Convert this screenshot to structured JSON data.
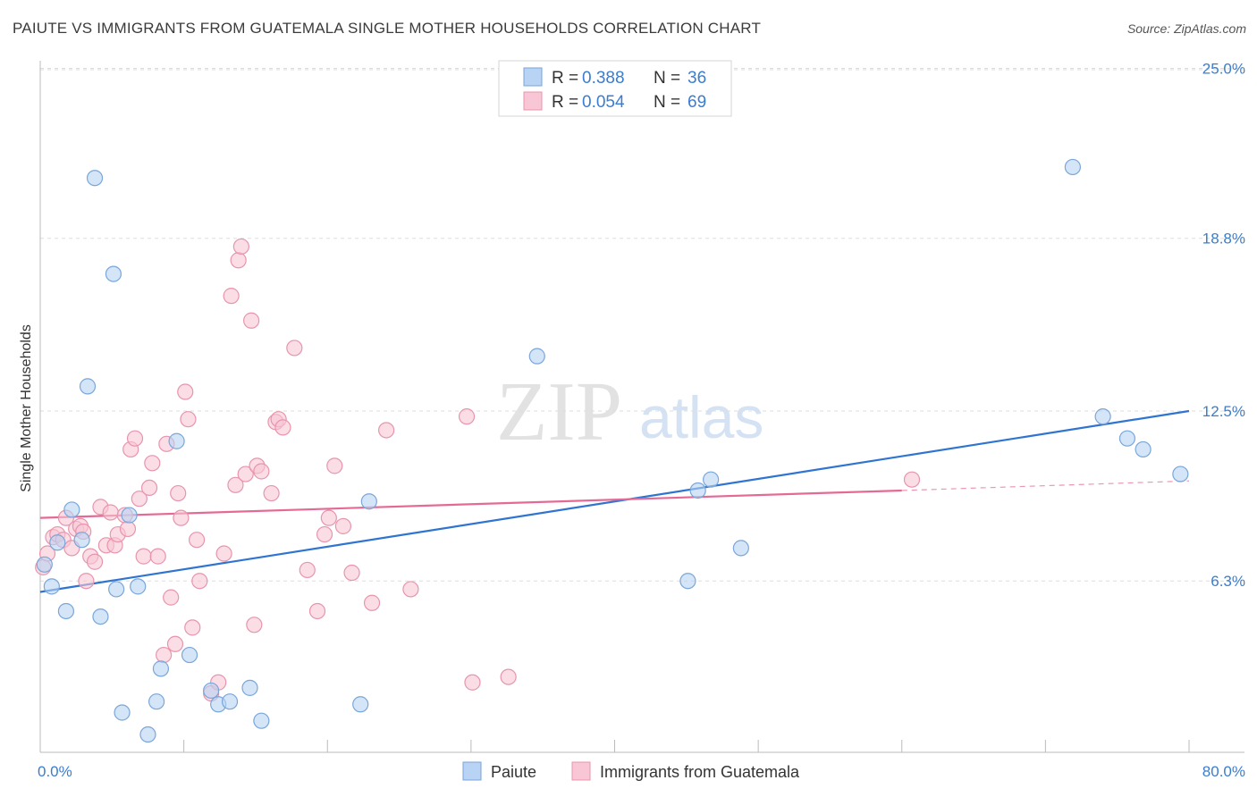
{
  "header": {
    "title": "PAIUTE VS IMMIGRANTS FROM GUATEMALA SINGLE MOTHER HOUSEHOLDS CORRELATION CHART",
    "source": "Source: ZipAtlas.com"
  },
  "watermark": {
    "zip": "ZIP",
    "atlas": "atlas"
  },
  "legend_top": {
    "rows": [
      {
        "r_label": "R =",
        "r_value": "0.388",
        "n_label": "N =",
        "n_value": "36"
      },
      {
        "r_label": "R =",
        "r_value": "0.054",
        "n_label": "N =",
        "n_value": "69"
      }
    ]
  },
  "legend_bottom": {
    "items": [
      "Paiute",
      "Immigrants from Guatemala"
    ]
  },
  "colors": {
    "paiute_fill": "#b8d3f3",
    "paiute_stroke": "#7aa6d9",
    "paiute_line": "#2f74d0",
    "guat_fill": "#f8c6d4",
    "guat_stroke": "#e795ad",
    "guat_line": "#e46a95",
    "tick_label": "#3a7dcf",
    "grid": "#dddddd"
  },
  "chart_data": {
    "type": "scatter",
    "title": "PAIUTE VS IMMIGRANTS FROM GUATEMALA SINGLE MOTHER HOUSEHOLDS CORRELATION CHART",
    "ylabel": "Single Mother Households",
    "xlabel": "",
    "xlim": [
      0,
      80
    ],
    "ylim": [
      0,
      25.9
    ],
    "x_ticks": [
      "0.0%",
      "80.0%"
    ],
    "y_ticks": [
      {
        "value": 6.3,
        "label": "6.3%"
      },
      {
        "value": 12.5,
        "label": "12.5%"
      },
      {
        "value": 18.8,
        "label": "18.8%"
      },
      {
        "value": 25.0,
        "label": "25.0%"
      }
    ],
    "grid": true,
    "legend_position": "top-center",
    "series": [
      {
        "name": "Paiute",
        "r": 0.388,
        "n": 36,
        "trend": {
          "x0": 0,
          "y0": 5.9,
          "x1": 80,
          "y1": 12.5
        },
        "points": [
          [
            0.3,
            6.9
          ],
          [
            0.8,
            6.1
          ],
          [
            1.2,
            7.7
          ],
          [
            1.8,
            5.2
          ],
          [
            2.2,
            8.9
          ],
          [
            2.9,
            7.8
          ],
          [
            3.3,
            13.4
          ],
          [
            3.8,
            21.0
          ],
          [
            4.2,
            5.0
          ],
          [
            5.1,
            17.5
          ],
          [
            5.3,
            6.0
          ],
          [
            5.7,
            1.5
          ],
          [
            6.2,
            8.7
          ],
          [
            6.8,
            6.1
          ],
          [
            7.5,
            0.7
          ],
          [
            8.1,
            1.9
          ],
          [
            8.4,
            3.1
          ],
          [
            9.5,
            11.4
          ],
          [
            10.4,
            3.6
          ],
          [
            11.9,
            2.3
          ],
          [
            12.4,
            1.8
          ],
          [
            13.2,
            1.9
          ],
          [
            14.6,
            2.4
          ],
          [
            15.4,
            1.2
          ],
          [
            22.3,
            1.8
          ],
          [
            22.9,
            9.2
          ],
          [
            34.6,
            14.5
          ],
          [
            45.1,
            6.3
          ],
          [
            45.8,
            9.6
          ],
          [
            46.7,
            10.0
          ],
          [
            48.8,
            7.5
          ],
          [
            71.9,
            21.4
          ],
          [
            74.0,
            12.3
          ],
          [
            75.7,
            11.5
          ],
          [
            76.8,
            11.1
          ],
          [
            79.4,
            10.2
          ]
        ]
      },
      {
        "name": "Immigrants from Guatemala",
        "r": 0.054,
        "n": 69,
        "trend": {
          "x0": 0,
          "y0": 8.6,
          "x1": 60,
          "y1": 9.6
        },
        "trend_dashed": {
          "x0": 60,
          "y0": 9.6,
          "x1": 80,
          "y1": 9.95
        },
        "points": [
          [
            0.2,
            6.8
          ],
          [
            0.5,
            7.3
          ],
          [
            0.9,
            7.9
          ],
          [
            1.2,
            8.0
          ],
          [
            1.6,
            7.8
          ],
          [
            1.8,
            8.6
          ],
          [
            2.2,
            7.5
          ],
          [
            2.5,
            8.2
          ],
          [
            2.8,
            8.3
          ],
          [
            3.0,
            8.1
          ],
          [
            3.2,
            6.3
          ],
          [
            3.5,
            7.2
          ],
          [
            3.8,
            7.0
          ],
          [
            4.2,
            9.0
          ],
          [
            4.6,
            7.6
          ],
          [
            4.9,
            8.8
          ],
          [
            5.2,
            7.6
          ],
          [
            5.4,
            8.0
          ],
          [
            5.9,
            8.7
          ],
          [
            6.1,
            8.2
          ],
          [
            6.3,
            11.1
          ],
          [
            6.6,
            11.5
          ],
          [
            6.9,
            9.3
          ],
          [
            7.2,
            7.2
          ],
          [
            7.6,
            9.7
          ],
          [
            7.8,
            10.6
          ],
          [
            8.2,
            7.2
          ],
          [
            8.6,
            3.6
          ],
          [
            8.8,
            11.3
          ],
          [
            9.1,
            5.7
          ],
          [
            9.4,
            4.0
          ],
          [
            9.6,
            9.5
          ],
          [
            9.8,
            8.6
          ],
          [
            10.1,
            13.2
          ],
          [
            10.3,
            12.2
          ],
          [
            10.6,
            4.6
          ],
          [
            10.9,
            7.8
          ],
          [
            11.1,
            6.3
          ],
          [
            11.9,
            2.2
          ],
          [
            12.4,
            2.6
          ],
          [
            12.8,
            7.3
          ],
          [
            13.3,
            16.7
          ],
          [
            13.6,
            9.8
          ],
          [
            13.8,
            18.0
          ],
          [
            14.0,
            18.5
          ],
          [
            14.3,
            10.2
          ],
          [
            14.7,
            15.8
          ],
          [
            14.9,
            4.7
          ],
          [
            15.1,
            10.5
          ],
          [
            15.4,
            10.3
          ],
          [
            16.1,
            9.5
          ],
          [
            16.4,
            12.1
          ],
          [
            16.6,
            12.2
          ],
          [
            16.9,
            11.9
          ],
          [
            17.7,
            14.8
          ],
          [
            18.6,
            6.7
          ],
          [
            19.3,
            5.2
          ],
          [
            19.8,
            8.0
          ],
          [
            20.1,
            8.6
          ],
          [
            20.5,
            10.5
          ],
          [
            21.1,
            8.3
          ],
          [
            21.7,
            6.6
          ],
          [
            23.1,
            5.5
          ],
          [
            24.1,
            11.8
          ],
          [
            25.8,
            6.0
          ],
          [
            29.7,
            12.3
          ],
          [
            30.1,
            2.6
          ],
          [
            32.6,
            2.8
          ],
          [
            60.7,
            10.0
          ]
        ]
      }
    ]
  }
}
